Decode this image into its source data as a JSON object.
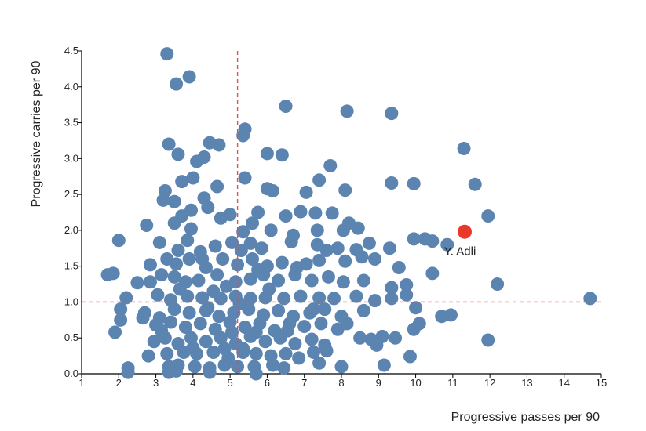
{
  "chart_data": {
    "type": "scatter",
    "title": "",
    "xlabel": "Progressive passes per 90",
    "ylabel": "Progressive carries per 90",
    "xlim": [
      1,
      15
    ],
    "ylim": [
      0,
      4.5
    ],
    "xticks": [
      "1",
      "2",
      "3",
      "4",
      "5",
      "6",
      "7",
      "8",
      "9",
      "10",
      "11",
      "12",
      "13",
      "14",
      "15"
    ],
    "yticks": [
      "0.0",
      "0.5",
      "1.0",
      "1.5",
      "2.0",
      "2.5",
      "3.0",
      "3.5",
      "4.0",
      "4.5"
    ],
    "grid": false,
    "reference_lines": {
      "x": 5.2,
      "y": 1.0,
      "color": "#d9534f",
      "style": "dashed"
    },
    "colors": {
      "points": "#5b84b1",
      "highlight": "#e8392a",
      "reference": "#d9534f"
    },
    "highlight": {
      "label": "Y. Adli",
      "x": 11.32,
      "y": 1.98
    },
    "series": [
      {
        "points": [
          [
            3.3,
            4.46
          ],
          [
            3.9,
            4.14
          ],
          [
            3.55,
            4.04
          ],
          [
            6.5,
            3.73
          ],
          [
            8.15,
            3.66
          ],
          [
            9.35,
            3.63
          ],
          [
            5.4,
            3.41
          ],
          [
            5.35,
            3.32
          ],
          [
            3.35,
            3.2
          ],
          [
            4.45,
            3.22
          ],
          [
            4.7,
            3.19
          ],
          [
            3.6,
            3.06
          ],
          [
            6.0,
            3.07
          ],
          [
            6.4,
            3.05
          ],
          [
            4.3,
            3.02
          ],
          [
            4.1,
            2.96
          ],
          [
            11.3,
            3.14
          ],
          [
            5.4,
            2.73
          ],
          [
            7.7,
            2.9
          ],
          [
            3.25,
            2.55
          ],
          [
            3.7,
            2.68
          ],
          [
            4.0,
            2.73
          ],
          [
            4.65,
            2.61
          ],
          [
            4.3,
            2.45
          ],
          [
            6.0,
            2.58
          ],
          [
            6.15,
            2.55
          ],
          [
            7.05,
            2.53
          ],
          [
            7.4,
            2.7
          ],
          [
            9.35,
            2.66
          ],
          [
            9.95,
            2.65
          ],
          [
            8.1,
            2.56
          ],
          [
            11.6,
            2.64
          ],
          [
            3.2,
            2.42
          ],
          [
            3.5,
            2.4
          ],
          [
            3.7,
            2.2
          ],
          [
            3.95,
            2.28
          ],
          [
            4.4,
            2.32
          ],
          [
            4.75,
            2.17
          ],
          [
            5.0,
            2.22
          ],
          [
            5.6,
            2.1
          ],
          [
            5.75,
            2.25
          ],
          [
            6.5,
            2.2
          ],
          [
            6.9,
            2.26
          ],
          [
            7.3,
            2.24
          ],
          [
            7.75,
            2.24
          ],
          [
            8.2,
            2.1
          ],
          [
            11.95,
            2.2
          ],
          [
            2.75,
            2.07
          ],
          [
            3.5,
            2.1
          ],
          [
            3.95,
            2.02
          ],
          [
            5.35,
            1.98
          ],
          [
            6.1,
            2.0
          ],
          [
            6.7,
            1.93
          ],
          [
            7.35,
            2.0
          ],
          [
            8.05,
            2.0
          ],
          [
            8.45,
            2.03
          ],
          [
            2.0,
            1.86
          ],
          [
            3.1,
            1.83
          ],
          [
            3.85,
            1.86
          ],
          [
            4.2,
            1.7
          ],
          [
            4.6,
            1.78
          ],
          [
            5.05,
            1.83
          ],
          [
            5.55,
            1.82
          ],
          [
            5.85,
            1.75
          ],
          [
            6.65,
            1.84
          ],
          [
            7.35,
            1.8
          ],
          [
            7.6,
            1.72
          ],
          [
            7.9,
            1.75
          ],
          [
            8.4,
            1.73
          ],
          [
            8.75,
            1.82
          ],
          [
            9.3,
            1.75
          ],
          [
            9.95,
            1.88
          ],
          [
            10.25,
            1.88
          ],
          [
            10.45,
            1.85
          ],
          [
            10.85,
            1.8
          ],
          [
            3.3,
            1.6
          ],
          [
            3.55,
            1.53
          ],
          [
            3.9,
            1.6
          ],
          [
            4.35,
            1.48
          ],
          [
            4.8,
            1.6
          ],
          [
            5.2,
            1.52
          ],
          [
            5.6,
            1.6
          ],
          [
            6.0,
            1.5
          ],
          [
            6.4,
            1.55
          ],
          [
            6.8,
            1.48
          ],
          [
            7.05,
            1.53
          ],
          [
            7.4,
            1.58
          ],
          [
            8.1,
            1.57
          ],
          [
            8.55,
            1.63
          ],
          [
            8.9,
            1.6
          ],
          [
            9.55,
            1.48
          ],
          [
            2.85,
            1.52
          ],
          [
            1.7,
            1.38
          ],
          [
            1.85,
            1.4
          ],
          [
            2.5,
            1.27
          ],
          [
            2.85,
            1.28
          ],
          [
            3.15,
            1.38
          ],
          [
            3.5,
            1.35
          ],
          [
            3.8,
            1.28
          ],
          [
            4.15,
            1.3
          ],
          [
            4.65,
            1.38
          ],
          [
            5.15,
            1.28
          ],
          [
            5.55,
            1.32
          ],
          [
            5.9,
            1.38
          ],
          [
            6.3,
            1.3
          ],
          [
            6.75,
            1.38
          ],
          [
            7.2,
            1.3
          ],
          [
            7.65,
            1.35
          ],
          [
            8.05,
            1.28
          ],
          [
            8.6,
            1.3
          ],
          [
            9.35,
            1.2
          ],
          [
            9.75,
            1.24
          ],
          [
            10.45,
            1.4
          ],
          [
            12.2,
            1.25
          ],
          [
            2.2,
            1.06
          ],
          [
            3.05,
            1.1
          ],
          [
            3.4,
            1.03
          ],
          [
            3.85,
            1.08
          ],
          [
            4.25,
            1.06
          ],
          [
            4.75,
            1.05
          ],
          [
            5.15,
            1.08
          ],
          [
            5.55,
            1.05
          ],
          [
            5.95,
            1.06
          ],
          [
            6.45,
            1.05
          ],
          [
            6.9,
            1.08
          ],
          [
            7.4,
            1.06
          ],
          [
            7.8,
            1.05
          ],
          [
            8.4,
            1.08
          ],
          [
            8.9,
            1.02
          ],
          [
            9.35,
            1.05
          ],
          [
            9.75,
            1.1
          ],
          [
            14.7,
            1.05
          ],
          [
            2.05,
            0.9
          ],
          [
            2.7,
            0.85
          ],
          [
            3.1,
            0.78
          ],
          [
            3.5,
            0.9
          ],
          [
            3.9,
            0.85
          ],
          [
            4.35,
            0.88
          ],
          [
            4.7,
            0.8
          ],
          [
            5.1,
            0.85
          ],
          [
            5.5,
            0.9
          ],
          [
            5.9,
            0.82
          ],
          [
            6.3,
            0.88
          ],
          [
            6.7,
            0.8
          ],
          [
            7.15,
            0.85
          ],
          [
            7.55,
            0.9
          ],
          [
            8.0,
            0.8
          ],
          [
            8.6,
            0.88
          ],
          [
            10.0,
            0.92
          ],
          [
            10.7,
            0.8
          ],
          [
            10.95,
            0.82
          ],
          [
            2.05,
            0.75
          ],
          [
            2.65,
            0.78
          ],
          [
            3.0,
            0.68
          ],
          [
            3.4,
            0.72
          ],
          [
            3.8,
            0.65
          ],
          [
            4.2,
            0.7
          ],
          [
            4.6,
            0.62
          ],
          [
            5.0,
            0.72
          ],
          [
            5.4,
            0.65
          ],
          [
            5.8,
            0.7
          ],
          [
            6.2,
            0.6
          ],
          [
            6.6,
            0.7
          ],
          [
            7.0,
            0.66
          ],
          [
            7.45,
            0.7
          ],
          [
            7.9,
            0.62
          ],
          [
            8.15,
            0.7
          ],
          [
            10.1,
            0.7
          ],
          [
            9.95,
            0.62
          ],
          [
            1.9,
            0.58
          ],
          [
            2.95,
            0.45
          ],
          [
            3.25,
            0.5
          ],
          [
            3.6,
            0.42
          ],
          [
            3.95,
            0.5
          ],
          [
            4.35,
            0.45
          ],
          [
            4.75,
            0.5
          ],
          [
            5.15,
            0.42
          ],
          [
            5.55,
            0.52
          ],
          [
            5.95,
            0.45
          ],
          [
            6.35,
            0.5
          ],
          [
            6.75,
            0.42
          ],
          [
            7.2,
            0.48
          ],
          [
            7.55,
            0.4
          ],
          [
            8.5,
            0.5
          ],
          [
            8.8,
            0.48
          ],
          [
            9.1,
            0.52
          ],
          [
            9.45,
            0.5
          ],
          [
            11.95,
            0.47
          ],
          [
            2.8,
            0.25
          ],
          [
            3.3,
            0.28
          ],
          [
            3.75,
            0.3
          ],
          [
            4.1,
            0.28
          ],
          [
            4.55,
            0.3
          ],
          [
            4.95,
            0.22
          ],
          [
            5.35,
            0.3
          ],
          [
            5.7,
            0.28
          ],
          [
            6.1,
            0.25
          ],
          [
            6.5,
            0.28
          ],
          [
            6.85,
            0.22
          ],
          [
            7.25,
            0.3
          ],
          [
            7.6,
            0.32
          ],
          [
            8.95,
            0.4
          ],
          [
            9.85,
            0.24
          ],
          [
            2.25,
            0.08
          ],
          [
            3.35,
            0.1
          ],
          [
            3.6,
            0.12
          ],
          [
            4.05,
            0.1
          ],
          [
            4.45,
            0.08
          ],
          [
            4.85,
            0.12
          ],
          [
            5.2,
            0.1
          ],
          [
            5.65,
            0.1
          ],
          [
            6.15,
            0.12
          ],
          [
            6.45,
            0.08
          ],
          [
            7.4,
            0.15
          ],
          [
            8.0,
            0.1
          ],
          [
            9.15,
            0.12
          ],
          [
            2.25,
            0.02
          ],
          [
            3.35,
            0.02
          ],
          [
            3.55,
            0.04
          ],
          [
            4.45,
            0.02
          ],
          [
            5.7,
            0.0
          ],
          [
            5.05,
            0.58
          ],
          [
            4.9,
            1.22
          ],
          [
            5.3,
            1.72
          ],
          [
            4.55,
            1.15
          ],
          [
            5.25,
            0.98
          ],
          [
            4.4,
            0.92
          ],
          [
            3.65,
            1.18
          ],
          [
            6.05,
            1.18
          ],
          [
            5.7,
            0.58
          ],
          [
            4.85,
            0.35
          ],
          [
            5.45,
            0.95
          ],
          [
            4.25,
            1.6
          ],
          [
            3.6,
            1.72
          ],
          [
            5.75,
            1.45
          ],
          [
            6.55,
            0.6
          ],
          [
            7.25,
            0.9
          ],
          [
            4.0,
            0.36
          ],
          [
            3.15,
            0.6
          ],
          [
            5.35,
            0.35
          ]
        ]
      }
    ]
  }
}
